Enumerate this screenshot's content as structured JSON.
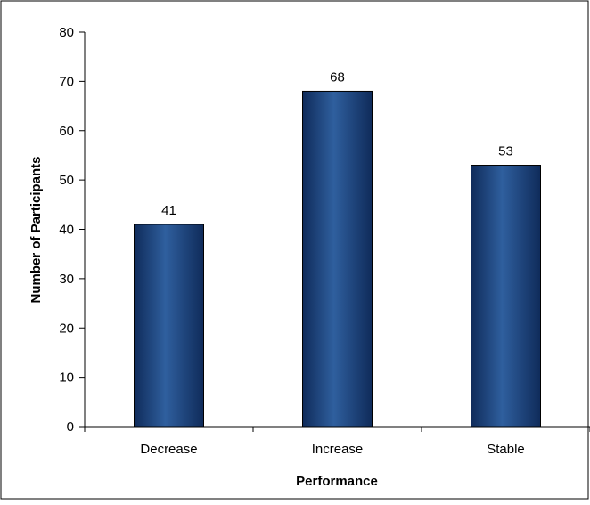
{
  "chart_data": {
    "type": "bar",
    "categories": [
      "Decrease",
      "Increase",
      "Stable"
    ],
    "values": [
      41,
      68,
      53
    ],
    "data_labels": [
      "41",
      "68",
      "53"
    ],
    "title": "",
    "xlabel": "Performance",
    "ylabel": "Number of Participants",
    "ylim": [
      0,
      80
    ],
    "yticks": [
      0,
      10,
      20,
      30,
      40,
      50,
      60,
      70,
      80
    ],
    "grid": false,
    "legend": "none",
    "bar_color": "#0f2b5a",
    "bar_highlight": "#2f5f9e"
  }
}
